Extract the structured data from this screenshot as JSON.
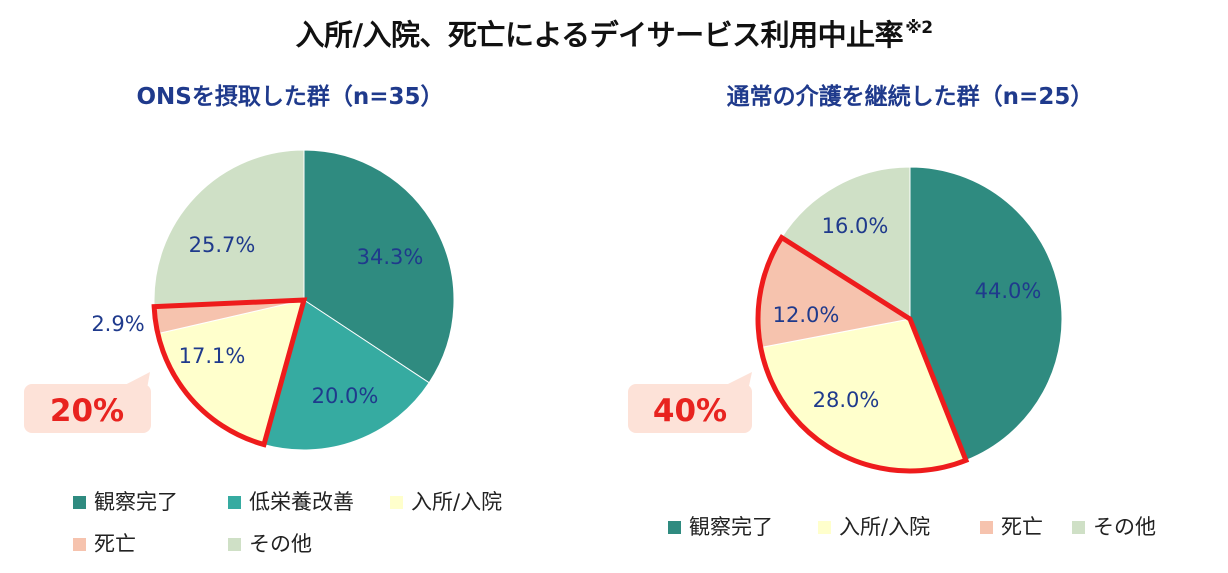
{
  "title": {
    "text": "入所/入院、死亡によるデイサービス利用中止率",
    "note": "※2"
  },
  "chart_data": [
    {
      "type": "pie",
      "title": "ONSを摂取した群（n=35）",
      "start": "12 o'clock, clockwise",
      "slices": [
        {
          "label": "観察完了",
          "value": 34.3,
          "display": "34.3%",
          "color": "#2f8b80"
        },
        {
          "label": "低栄養改善",
          "value": 20.0,
          "display": "20.0%",
          "color": "#36aba1"
        },
        {
          "label": "入所/入院",
          "value": 17.1,
          "display": "17.1%",
          "color": "#ffffcc"
        },
        {
          "label": "死亡",
          "value": 2.9,
          "display": "2.9%",
          "color": "#f6c3ae"
        },
        {
          "label": "その他",
          "value": 25.7,
          "display": "25.7%",
          "color": "#cfe0c6"
        }
      ],
      "highlight": [
        "入所/入院",
        "死亡"
      ],
      "callout": "20%",
      "legend": [
        "観察完了",
        "低栄養改善",
        "入所/入院",
        "死亡",
        "その他"
      ],
      "legend_position": "bottom"
    },
    {
      "type": "pie",
      "title": "通常の介護を継続した群（n=25）",
      "start": "12 o'clock, clockwise",
      "slices": [
        {
          "label": "観察完了",
          "value": 44.0,
          "display": "44.0%",
          "color": "#2f8b80"
        },
        {
          "label": "入所/入院",
          "value": 28.0,
          "display": "28.0%",
          "color": "#ffffcc"
        },
        {
          "label": "死亡",
          "value": 12.0,
          "display": "12.0%",
          "color": "#f6c3ae"
        },
        {
          "label": "その他",
          "value": 16.0,
          "display": "16.0%",
          "color": "#cfe0c6"
        }
      ],
      "highlight": [
        "入所/入院",
        "死亡"
      ],
      "callout": "40%",
      "legend": [
        "観察完了",
        "入所/入院",
        "死亡",
        "その他"
      ],
      "legend_position": "bottom"
    }
  ],
  "colors": {
    "highlight_outline": "#ee1c1c",
    "label_text": "#1f3a8c",
    "callout_fill": "#fde2d8",
    "callout_text": "#e8231f"
  }
}
